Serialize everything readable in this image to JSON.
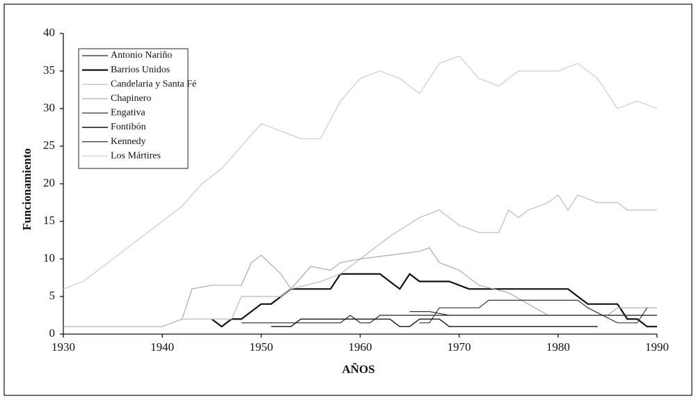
{
  "chart_data": {
    "type": "line",
    "x_label": "AÑOS",
    "y_label": "Funcionamiento",
    "xlim": [
      1930,
      1990
    ],
    "xticks": [
      1930,
      1940,
      1950,
      1960,
      1970,
      1980,
      1990
    ],
    "ylim": [
      0,
      40
    ],
    "yticks": [
      0,
      5,
      10,
      15,
      20,
      25,
      30,
      35,
      40
    ],
    "grid": false,
    "legend": "upper left",
    "series": [
      {
        "name": "Antonio Nariño",
        "color": "#222",
        "width": 1.2,
        "x": [
          1948,
          1958,
          1959,
          1960,
          1961,
          1962,
          1968,
          1990
        ],
        "values": [
          1.5,
          1.5,
          2.5,
          1.5,
          1.5,
          2.5,
          2.5,
          2.5
        ]
      },
      {
        "name": "Barrios Unidos",
        "color": "#111",
        "width": 2.2,
        "x": [
          1945,
          1946,
          1947,
          1948,
          1950,
          1951,
          1953,
          1957,
          1958,
          1962,
          1964,
          1965,
          1966,
          1969,
          1971,
          1981,
          1983,
          1986,
          1987,
          1988,
          1989,
          1990
        ],
        "values": [
          2,
          1,
          2,
          2,
          4,
          4,
          6,
          6,
          8,
          8,
          6,
          8,
          7,
          7,
          6,
          6,
          4,
          4,
          2,
          2,
          1,
          1
        ]
      },
      {
        "name": "Candelaria y Santa Fé",
        "color": "#bbb",
        "width": 1.2,
        "x": [
          1942,
          1947,
          1948,
          1952,
          1953,
          1956,
          1958,
          1960,
          1963,
          1966,
          1968,
          1970,
          1972,
          1974,
          1975,
          1976,
          1977,
          1979,
          1980,
          1981,
          1982,
          1984,
          1986,
          1987,
          1990
        ],
        "values": [
          2,
          2,
          5,
          5,
          6,
          7,
          8,
          10,
          13,
          15.5,
          16.5,
          14.5,
          13.5,
          13.5,
          16.5,
          15.5,
          16.5,
          17.5,
          18.5,
          16.5,
          18.5,
          17.5,
          17.5,
          16.5,
          16.5
        ]
      },
      {
        "name": "Chapinero",
        "color": "#aaa",
        "width": 1.2,
        "x": [
          1930,
          1940,
          1942,
          1943,
          1945,
          1948,
          1949,
          1950,
          1952,
          1953,
          1955,
          1957,
          1958,
          1960,
          1966,
          1967,
          1968,
          1970,
          1972,
          1975,
          1977,
          1979,
          1985,
          1986,
          1990
        ],
        "values": [
          1,
          1,
          2,
          6,
          6.5,
          6.5,
          9.5,
          10.5,
          8,
          6,
          9,
          8.5,
          9.5,
          10,
          11,
          11.5,
          9.5,
          8.5,
          6.5,
          5.5,
          4,
          2.5,
          2.5,
          3.5,
          3.5
        ]
      },
      {
        "name": "Engativa",
        "color": "#333",
        "width": 1.2,
        "x": [
          1966,
          1967,
          1968,
          1972,
          1973,
          1982,
          1983,
          1986,
          1988,
          1989
        ],
        "values": [
          1.5,
          1.5,
          3.5,
          3.5,
          4.5,
          4.5,
          3.5,
          1.5,
          1.5,
          3.5
        ]
      },
      {
        "name": "Fontibón",
        "color": "#111",
        "width": 1.4,
        "x": [
          1951,
          1953,
          1954,
          1963,
          1964,
          1965,
          1966,
          1968,
          1969,
          1984
        ],
        "values": [
          1,
          1,
          2,
          2,
          1,
          1,
          2,
          2,
          1,
          1
        ]
      },
      {
        "name": "Kennedy",
        "color": "#333",
        "width": 1.2,
        "x": [
          1965,
          1967,
          1969,
          1971,
          1990
        ],
        "values": [
          3,
          3,
          2.5,
          2.5,
          2.5
        ]
      },
      {
        "name": "Los Mártires",
        "color": "#ccc",
        "width": 1.2,
        "x": [
          1930,
          1932,
          1934,
          1936,
          1938,
          1940,
          1942,
          1944,
          1946,
          1948,
          1950,
          1952,
          1954,
          1956,
          1958,
          1960,
          1962,
          1964,
          1966,
          1968,
          1970,
          1972,
          1974,
          1976,
          1978,
          1980,
          1982,
          1984,
          1986,
          1988,
          1990
        ],
        "values": [
          6,
          7,
          9,
          11,
          13,
          15,
          17,
          20,
          22,
          25,
          28,
          27,
          26,
          26,
          31,
          34,
          35,
          34,
          32,
          36,
          37,
          34,
          33,
          35,
          35,
          35,
          36,
          34,
          30,
          31,
          30
        ]
      }
    ]
  }
}
